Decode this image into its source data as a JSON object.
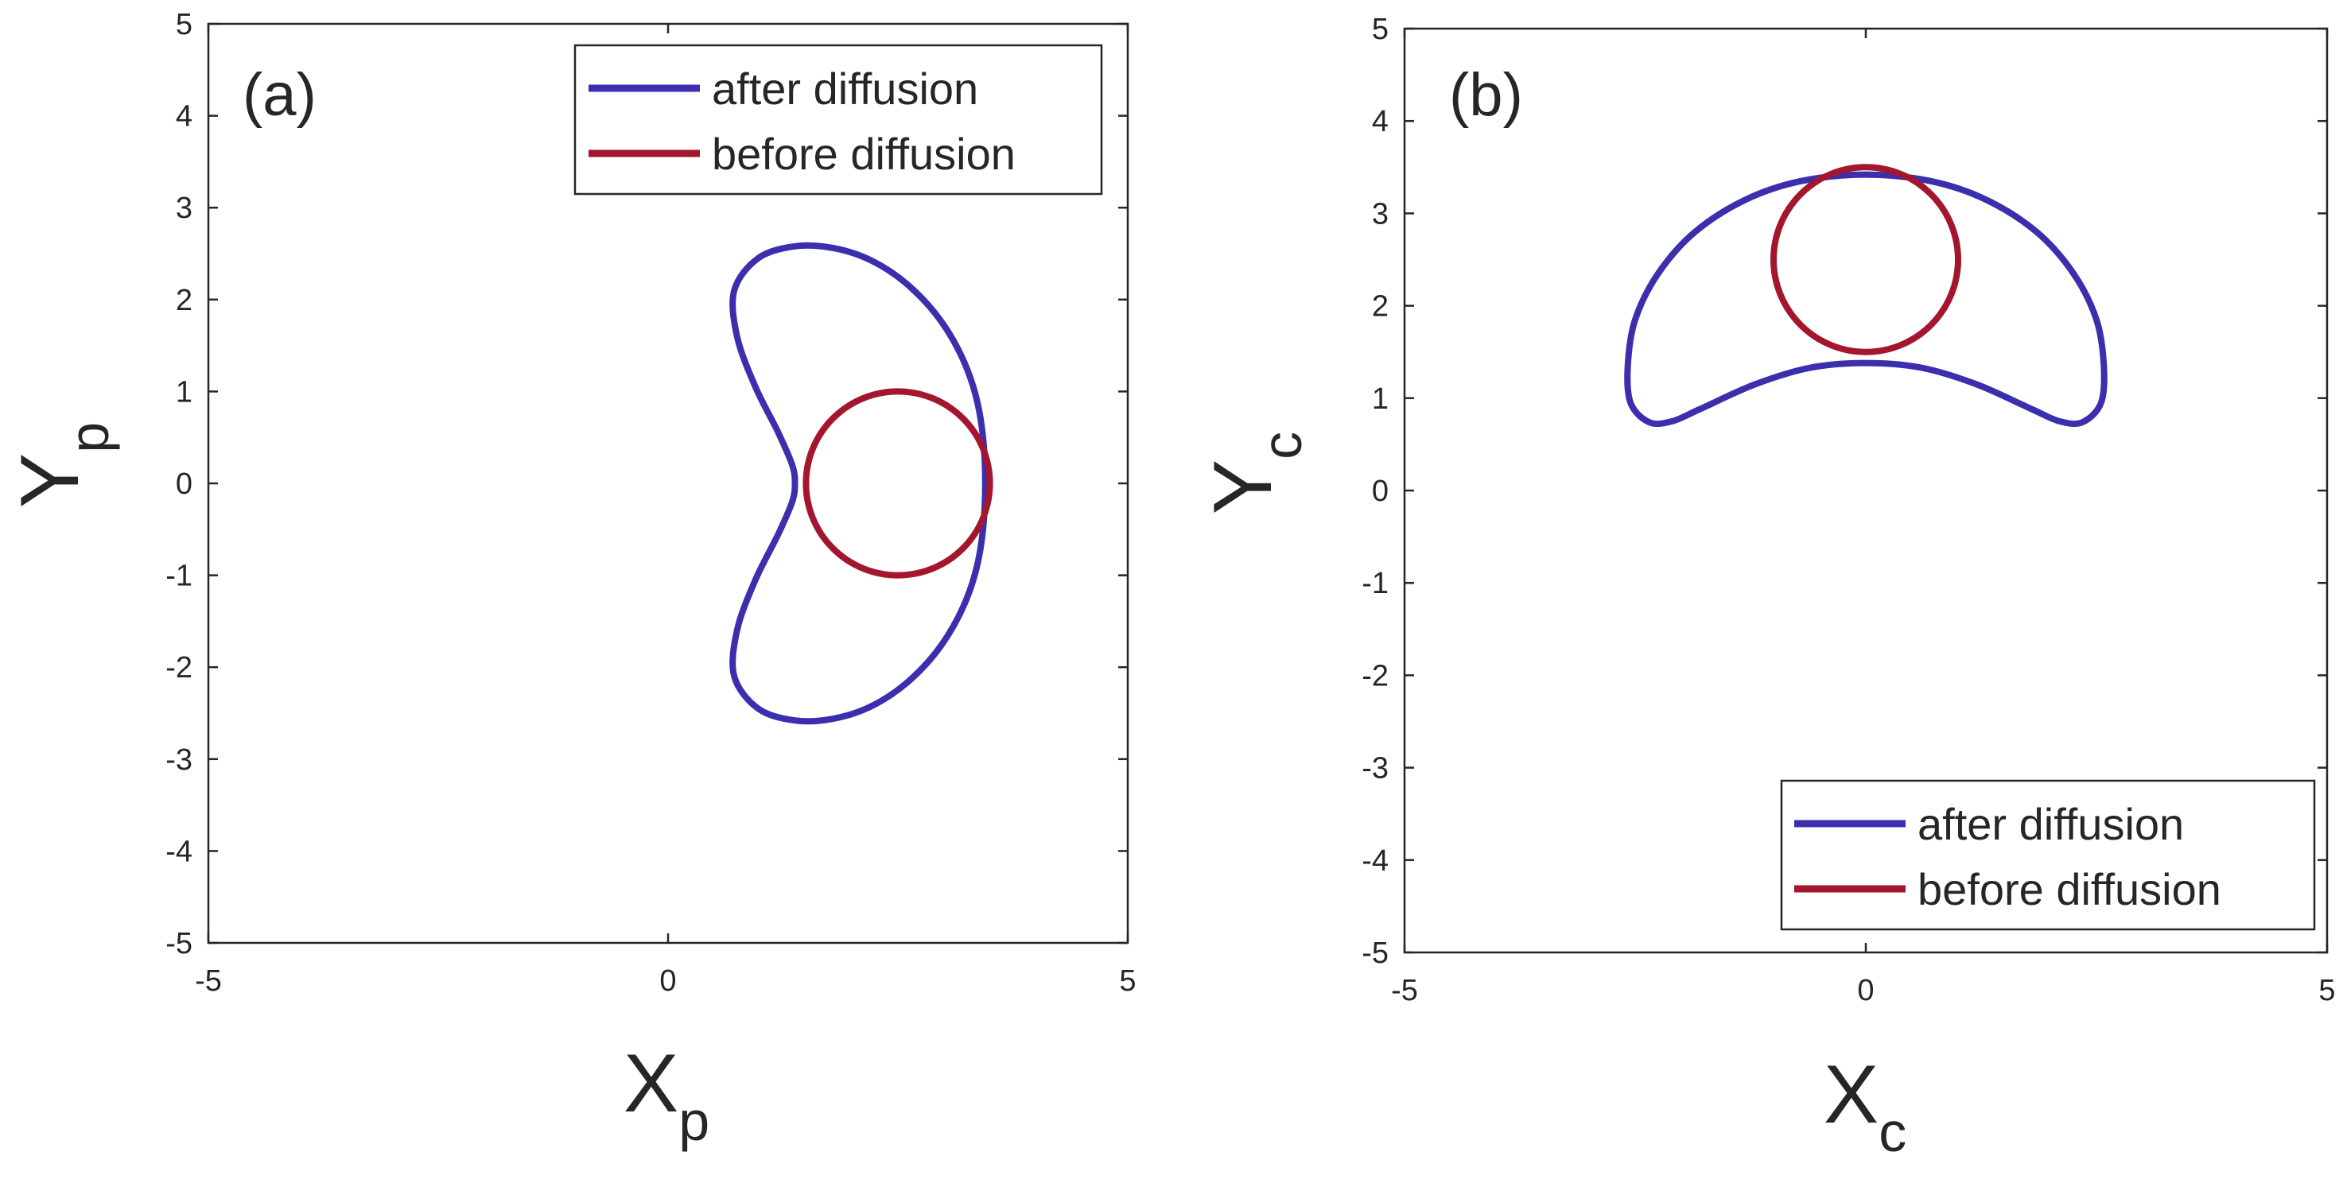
{
  "chart_data": [
    {
      "type": "line",
      "panel_label": "(a)",
      "xlabel": "X",
      "xlabel_sub": "p",
      "ylabel": "Y",
      "ylabel_sub": "p",
      "xlim": [
        -5,
        5
      ],
      "ylim": [
        -5,
        5
      ],
      "xticks": [
        -5,
        0,
        5
      ],
      "yticks": [
        -5,
        -4,
        -3,
        -2,
        -1,
        0,
        1,
        2,
        3,
        4,
        5
      ],
      "legend_position": "top-right",
      "series": [
        {
          "name": "after diffusion",
          "color": "#3b2fad",
          "x": [
            3.45,
            3.4,
            3.25,
            2.98,
            2.62,
            2.22,
            1.8,
            1.38,
            0.98,
            0.72,
            0.75,
            0.95,
            1.2,
            1.35,
            1.38,
            1.35,
            1.2,
            0.95,
            0.75,
            0.72,
            0.98,
            1.38,
            1.8,
            2.22,
            2.62,
            2.98,
            3.25,
            3.4,
            3.45
          ],
          "y": [
            0.0,
            0.7,
            1.25,
            1.75,
            2.15,
            2.42,
            2.56,
            2.58,
            2.45,
            2.1,
            1.6,
            1.05,
            0.55,
            0.2,
            0.0,
            -0.2,
            -0.55,
            -1.05,
            -1.6,
            -2.1,
            -2.45,
            -2.58,
            -2.56,
            -2.42,
            -2.15,
            -1.75,
            -1.25,
            -0.7,
            0.0
          ]
        },
        {
          "name": "before diffusion",
          "color": "#a3162e",
          "shape": "circle",
          "center": [
            2.5,
            0.0
          ],
          "radius": 1.0
        }
      ]
    },
    {
      "type": "line",
      "panel_label": "(b)",
      "xlabel": "X",
      "xlabel_sub": "c",
      "ylabel": "Y",
      "ylabel_sub": "c",
      "xlim": [
        -5,
        5
      ],
      "ylim": [
        -5,
        5
      ],
      "xticks": [
        -5,
        0,
        5
      ],
      "yticks": [
        -5,
        -4,
        -3,
        -2,
        -1,
        0,
        1,
        2,
        3,
        4,
        5
      ],
      "legend_position": "bottom-right",
      "series": [
        {
          "name": "after diffusion",
          "color": "#3b2fad",
          "x": [
            0.0,
            0.7,
            1.3,
            1.85,
            2.25,
            2.5,
            2.58,
            2.55,
            2.35,
            2.1,
            1.8,
            1.2,
            0.6,
            0.0,
            -0.6,
            -1.2,
            -1.8,
            -2.1,
            -2.35,
            -2.55,
            -2.58,
            -2.5,
            -2.25,
            -1.85,
            -1.3,
            -0.7,
            0.0
          ],
          "y": [
            3.42,
            3.35,
            3.15,
            2.8,
            2.35,
            1.85,
            1.35,
            0.95,
            0.74,
            0.75,
            0.88,
            1.15,
            1.33,
            1.38,
            1.33,
            1.15,
            0.88,
            0.75,
            0.74,
            0.95,
            1.35,
            1.85,
            2.35,
            2.8,
            3.15,
            3.35,
            3.42
          ]
        },
        {
          "name": "before diffusion",
          "color": "#a3162e",
          "shape": "circle",
          "center": [
            0.0,
            2.5
          ],
          "radius": 1.0
        }
      ]
    }
  ]
}
